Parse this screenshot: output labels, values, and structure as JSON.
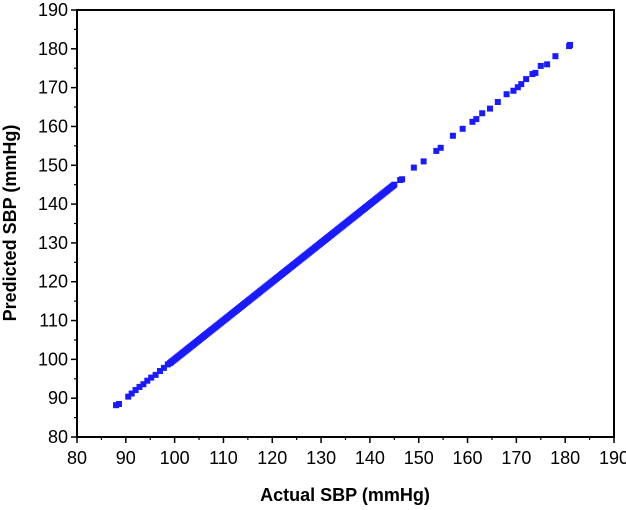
{
  "chart_data": {
    "type": "scatter",
    "xlabel": "Actual SBP (mmHg)",
    "ylabel": "Predicted SBP (mmHg)",
    "xlim": [
      80,
      190
    ],
    "ylim": [
      80,
      190
    ],
    "xticks": [
      80,
      90,
      100,
      110,
      120,
      130,
      140,
      150,
      160,
      170,
      180,
      190
    ],
    "yticks": [
      80,
      90,
      100,
      110,
      120,
      130,
      140,
      150,
      160,
      170,
      180,
      190
    ],
    "grid": false,
    "legend": "none",
    "marker": "square",
    "color": "#1a1aff",
    "series": [
      {
        "dense_segment": {
          "x_start": 99,
          "x_end": 145,
          "step": 0.25
        },
        "points": [
          [
            88,
            88.2
          ],
          [
            88.6,
            88.5
          ],
          [
            90.5,
            90.4
          ],
          [
            91.2,
            91.2
          ],
          [
            92,
            92.1
          ],
          [
            92.8,
            92.9
          ],
          [
            93.6,
            93.6
          ],
          [
            94.4,
            94.5
          ],
          [
            95.2,
            95.3
          ],
          [
            96.1,
            96.0
          ],
          [
            97,
            97.0
          ],
          [
            97.8,
            97.8
          ],
          [
            98.6,
            98.7
          ],
          [
            146.2,
            146.2
          ],
          [
            146.6,
            146.4
          ],
          [
            149,
            149.4
          ],
          [
            151,
            151.0
          ],
          [
            153.6,
            153.7
          ],
          [
            154.5,
            154.5
          ],
          [
            157,
            157.6
          ],
          [
            159,
            159.4
          ],
          [
            161,
            161.2
          ],
          [
            161.8,
            161.9
          ],
          [
            163,
            163.4
          ],
          [
            164.6,
            164.6
          ],
          [
            166.2,
            166.3
          ],
          [
            168,
            168.3
          ],
          [
            169.4,
            169.2
          ],
          [
            170.3,
            170.1
          ],
          [
            171,
            170.9
          ],
          [
            172,
            172.2
          ],
          [
            173.3,
            173.5
          ],
          [
            173.9,
            173.8
          ],
          [
            175,
            175.6
          ],
          [
            176.3,
            176.0
          ],
          [
            178,
            178.1
          ],
          [
            180.8,
            180.7
          ],
          [
            181,
            181.0
          ]
        ]
      }
    ]
  }
}
